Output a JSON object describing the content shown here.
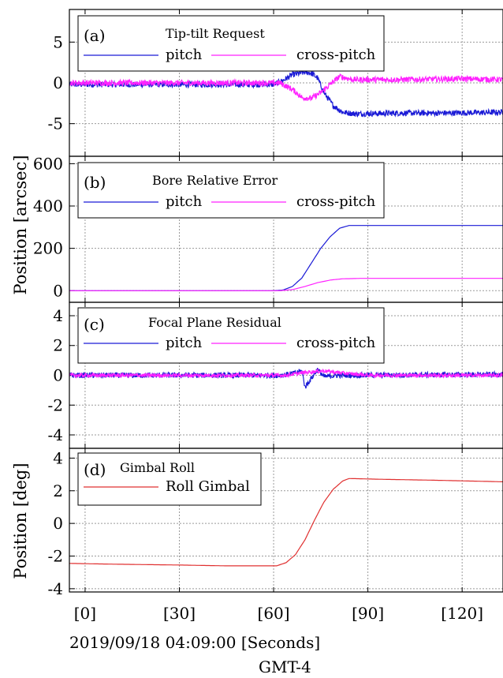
{
  "x_tick_labels": [
    "[0]",
    "[30]",
    "[60]",
    "[90]",
    "[120]"
  ],
  "x_axis_label": "2019/09/18 04:09:00 [Seconds]",
  "timezone_label": "GMT-4",
  "y_label_arcsec": "Position [arcsec]",
  "y_label_deg": "Position [deg]",
  "colors": {
    "pitch": "#1a1ad6",
    "cross_pitch": "#ff22ff",
    "roll": "#e03030",
    "grid": "#9a9a9a"
  },
  "chart_data": [
    {
      "type": "line",
      "panel_label": "(a)",
      "title": "Tip-tilt Request",
      "xlim": [
        -5,
        133
      ],
      "ylim": [
        -9,
        9
      ],
      "yticks": [
        5,
        0,
        -5
      ],
      "ytick_labels": [
        "5",
        "0",
        "-5"
      ],
      "xticks": [
        0,
        30,
        60,
        90,
        120
      ],
      "grid": true,
      "legend": "top-left",
      "series": [
        {
          "name": "pitch",
          "color": "#1a1ad6",
          "noise": 0.35,
          "points": [
            [
              -5,
              -0.2
            ],
            [
              60,
              -0.2
            ],
            [
              63,
              0.3
            ],
            [
              66,
              1.0
            ],
            [
              70,
              1.3
            ],
            [
              72,
              1.2
            ],
            [
              74,
              0.6
            ],
            [
              76,
              -1.2
            ],
            [
              79,
              -2.8
            ],
            [
              82,
              -3.6
            ],
            [
              86,
              -3.8
            ],
            [
              100,
              -3.7
            ],
            [
              115,
              -3.7
            ],
            [
              133,
              -3.6
            ]
          ]
        },
        {
          "name": "cross-pitch",
          "color": "#ff22ff",
          "noise": 0.35,
          "points": [
            [
              -5,
              0.0
            ],
            [
              62,
              0.0
            ],
            [
              66,
              -0.8
            ],
            [
              69,
              -1.8
            ],
            [
              72,
              -1.9
            ],
            [
              75,
              -1.2
            ],
            [
              78,
              -0.2
            ],
            [
              81,
              0.8
            ],
            [
              85,
              0.4
            ],
            [
              100,
              0.4
            ],
            [
              120,
              0.5
            ],
            [
              133,
              0.4
            ]
          ]
        }
      ]
    },
    {
      "type": "line",
      "panel_label": "(b)",
      "title": "Bore Relative Error",
      "xlim": [
        -5,
        133
      ],
      "ylim": [
        -55,
        635
      ],
      "yticks": [
        600,
        400,
        200,
        0
      ],
      "ytick_labels": [
        "600",
        "400",
        "200",
        "0"
      ],
      "xticks": [
        0,
        30,
        60,
        90,
        120
      ],
      "grid": true,
      "legend": "top-left",
      "series": [
        {
          "name": "pitch",
          "color": "#1a1ad6",
          "noise": 0,
          "points": [
            [
              -5,
              0
            ],
            [
              60,
              0
            ],
            [
              63,
              3
            ],
            [
              66,
              20
            ],
            [
              69,
              60
            ],
            [
              72,
              130
            ],
            [
              75,
              200
            ],
            [
              78,
              255
            ],
            [
              81,
              295
            ],
            [
              84,
              308
            ],
            [
              100,
              308
            ],
            [
              133,
              308
            ]
          ]
        },
        {
          "name": "cross-pitch",
          "color": "#ff22ff",
          "noise": 0,
          "points": [
            [
              -5,
              0
            ],
            [
              62,
              0
            ],
            [
              66,
              5
            ],
            [
              70,
              20
            ],
            [
              74,
              38
            ],
            [
              78,
              50
            ],
            [
              82,
              56
            ],
            [
              88,
              58
            ],
            [
              133,
              58
            ]
          ]
        }
      ]
    },
    {
      "type": "line",
      "panel_label": "(c)",
      "title": "Focal Plane Residual",
      "xlim": [
        -5,
        133
      ],
      "ylim": [
        -4.9,
        4.9
      ],
      "yticks": [
        4,
        2,
        0,
        -2,
        -4
      ],
      "ytick_labels": [
        "4",
        "2",
        "0",
        "-2",
        "-4"
      ],
      "xticks": [
        0,
        30,
        60,
        90,
        120
      ],
      "grid": true,
      "legend": "top-left",
      "series": [
        {
          "name": "pitch",
          "color": "#1a1ad6",
          "noise": 0.18,
          "points": [
            [
              -5,
              0.0
            ],
            [
              62,
              0.0
            ],
            [
              66,
              0.1
            ],
            [
              69,
              0.3
            ],
            [
              70,
              -0.8
            ],
            [
              72,
              -0.2
            ],
            [
              74,
              0.4
            ],
            [
              76,
              -0.1
            ],
            [
              80,
              0.0
            ],
            [
              133,
              0.05
            ]
          ]
        },
        {
          "name": "cross-pitch",
          "color": "#ff22ff",
          "noise": 0.12,
          "points": [
            [
              -5,
              0.0
            ],
            [
              64,
              0.0
            ],
            [
              70,
              0.2
            ],
            [
              76,
              0.3
            ],
            [
              82,
              0.15
            ],
            [
              90,
              0.0
            ],
            [
              133,
              0.0
            ]
          ]
        }
      ]
    },
    {
      "type": "line",
      "panel_label": "(d)",
      "title": "Gimbal Roll",
      "xlim": [
        -5,
        133
      ],
      "ylim": [
        -4.2,
        4.6
      ],
      "yticks": [
        4,
        2,
        0,
        -2,
        -4
      ],
      "ytick_labels": [
        "4",
        "2",
        "0",
        "-2",
        "-4"
      ],
      "xticks": [
        0,
        30,
        60,
        90,
        120
      ],
      "grid": true,
      "legend": "top-left",
      "series": [
        {
          "name": "Roll Gimbal",
          "color": "#e03030",
          "noise": 0,
          "points": [
            [
              -5,
              -2.45
            ],
            [
              10,
              -2.5
            ],
            [
              30,
              -2.55
            ],
            [
              45,
              -2.6
            ],
            [
              55,
              -2.6
            ],
            [
              61,
              -2.6
            ],
            [
              64,
              -2.4
            ],
            [
              67,
              -1.9
            ],
            [
              70,
              -1.0
            ],
            [
              73,
              0.2
            ],
            [
              76,
              1.3
            ],
            [
              79,
              2.1
            ],
            [
              82,
              2.6
            ],
            [
              84,
              2.75
            ],
            [
              95,
              2.7
            ],
            [
              110,
              2.65
            ],
            [
              133,
              2.55
            ]
          ]
        }
      ]
    }
  ]
}
